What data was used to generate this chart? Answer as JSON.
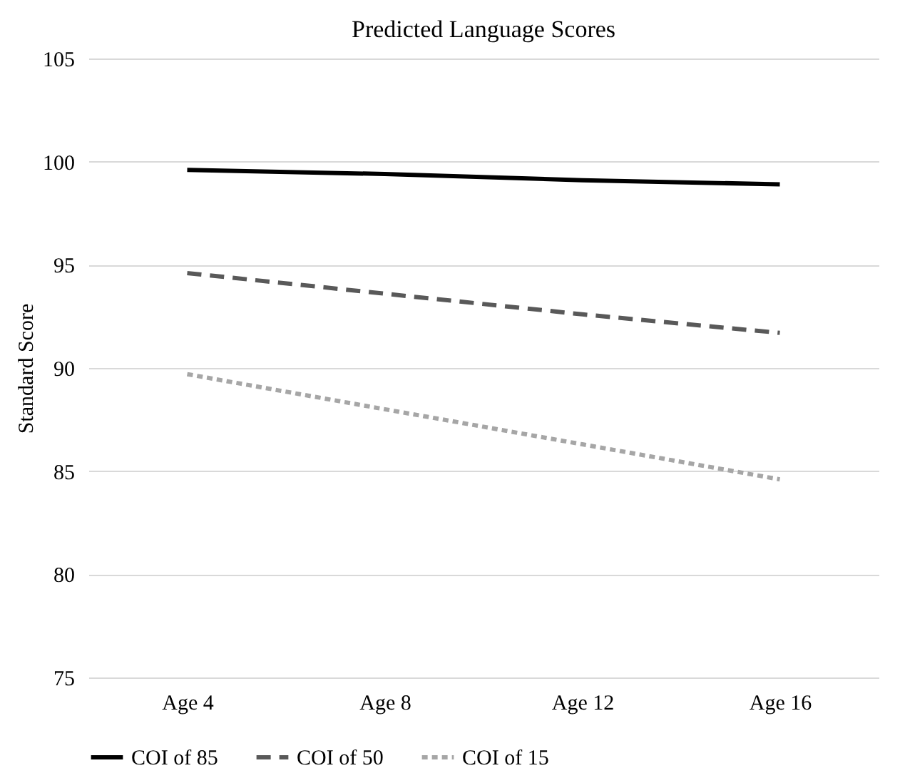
{
  "chart_data": {
    "type": "line",
    "title": "Predicted Language Scores",
    "ylabel": "Standard Score",
    "categories": [
      "Age 4",
      "Age 8",
      "Age 12",
      "Age 16"
    ],
    "series": [
      {
        "name": "COI of 85",
        "color": "#000000",
        "line_style": "solid",
        "values": [
          99.6,
          99.4,
          99.1,
          98.9
        ]
      },
      {
        "name": "COI of 50",
        "color": "#595959",
        "line_style": "dashed",
        "values": [
          94.6,
          93.6,
          92.6,
          91.7
        ]
      },
      {
        "name": "COI of 15",
        "color": "#a6a6a6",
        "line_style": "dotted",
        "values": [
          89.7,
          88.0,
          86.3,
          84.6
        ]
      }
    ],
    "ylim": [
      75,
      105
    ],
    "yticks": [
      75,
      80,
      85,
      90,
      95,
      100,
      105
    ],
    "grid": "y",
    "legend": "bottom",
    "marker": "none"
  }
}
